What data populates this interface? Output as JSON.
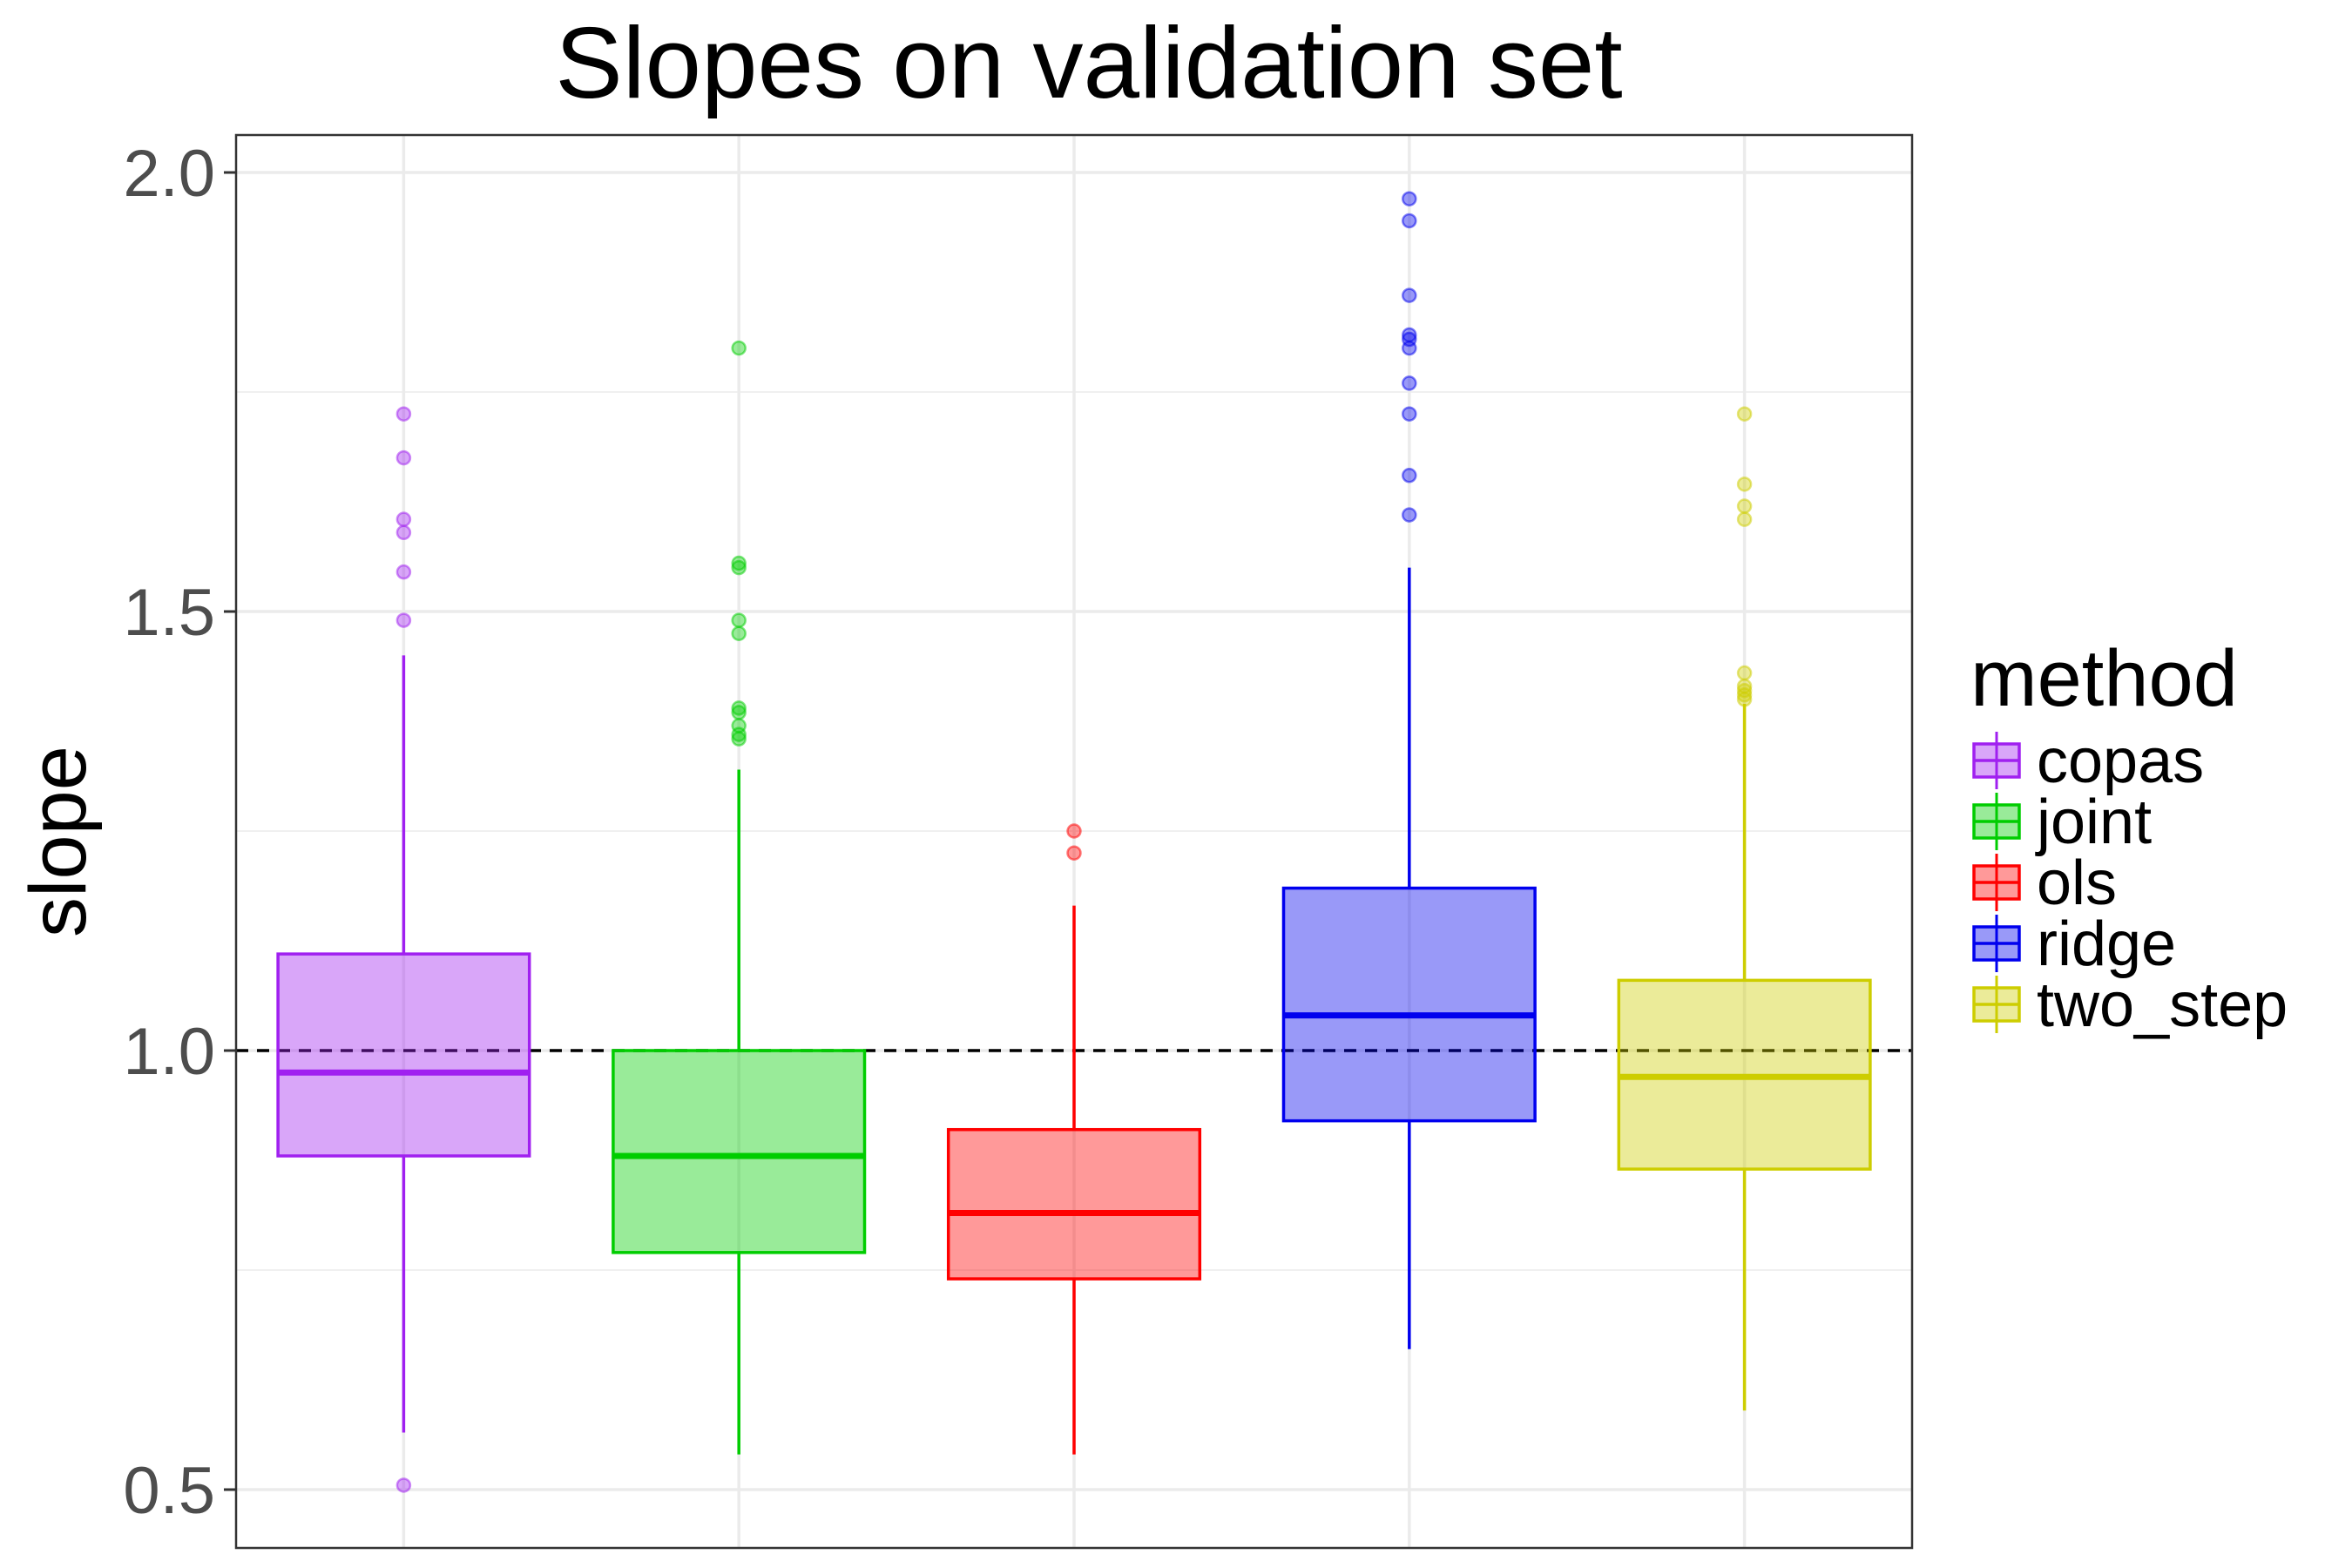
{
  "chart_data": {
    "type": "box",
    "title": "Slopes on validation set",
    "xlabel": "",
    "ylabel": "slope",
    "ylim": [
      0.43,
      2.04
    ],
    "y_ticks": [
      "0.5",
      "1.0",
      "1.5",
      "2.0"
    ],
    "y_tick_values": [
      0.5,
      1.0,
      1.5,
      2.0
    ],
    "grid": true,
    "reference_line": {
      "y": 1.0,
      "style": "dashed"
    },
    "legend": {
      "title": "method",
      "position": "right"
    },
    "series": [
      {
        "name": "copas",
        "color": "#a020f0",
        "q1": 0.88,
        "median": 0.975,
        "q3": 1.11,
        "whisker_low": 0.565,
        "whisker_high": 1.45,
        "outliers": [
          1.725,
          1.675,
          1.605,
          1.59,
          1.545,
          1.49,
          0.505
        ]
      },
      {
        "name": "joint",
        "color": "#00cd00",
        "q1": 0.77,
        "median": 0.88,
        "q3": 1.0,
        "whisker_low": 0.54,
        "whisker_high": 1.32,
        "outliers": [
          1.8,
          1.555,
          1.55,
          1.49,
          1.475,
          1.39,
          1.385,
          1.37,
          1.36,
          1.355
        ]
      },
      {
        "name": "ols",
        "color": "#ff0000",
        "q1": 0.74,
        "median": 0.815,
        "q3": 0.91,
        "whisker_low": 0.54,
        "whisker_high": 1.165,
        "outliers": [
          1.25,
          1.225
        ]
      },
      {
        "name": "ridge",
        "color": "#0000ee",
        "q1": 0.92,
        "median": 1.04,
        "q3": 1.185,
        "whisker_low": 0.66,
        "whisker_high": 1.55,
        "outliers": [
          1.97,
          1.945,
          1.86,
          1.815,
          1.81,
          1.8,
          1.76,
          1.725,
          1.655,
          1.61
        ]
      },
      {
        "name": "two_step",
        "color": "#cdcd00",
        "q1": 0.865,
        "median": 0.97,
        "q3": 1.08,
        "whisker_low": 0.59,
        "whisker_high": 1.395,
        "outliers": [
          1.725,
          1.645,
          1.62,
          1.605,
          1.43,
          1.415,
          1.41,
          1.405,
          1.4
        ]
      }
    ]
  }
}
